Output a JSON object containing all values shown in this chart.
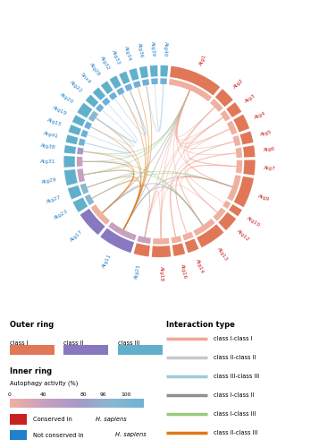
{
  "proteins": [
    {
      "name": "Atg1",
      "class": "I",
      "conserved": true,
      "partners": 14,
      "autophagy": 5
    },
    {
      "name": "Atg2",
      "class": "I",
      "conserved": true,
      "partners": 4,
      "autophagy": 5
    },
    {
      "name": "Atg3",
      "class": "I",
      "conserved": true,
      "partners": 3,
      "autophagy": 5
    },
    {
      "name": "Atg4",
      "class": "I",
      "conserved": true,
      "partners": 4,
      "autophagy": 5
    },
    {
      "name": "Atg5",
      "class": "I",
      "conserved": true,
      "partners": 3,
      "autophagy": 5
    },
    {
      "name": "Atg6",
      "class": "I",
      "conserved": true,
      "partners": 3,
      "autophagy": 5
    },
    {
      "name": "Atg7",
      "class": "I",
      "conserved": true,
      "partners": 4,
      "autophagy": 5
    },
    {
      "name": "Atg9",
      "class": "I",
      "conserved": true,
      "partners": 8,
      "autophagy": 5
    },
    {
      "name": "Atg10",
      "class": "I",
      "conserved": true,
      "partners": 2,
      "autophagy": 5
    },
    {
      "name": "Atg12",
      "class": "I",
      "conserved": true,
      "partners": 4,
      "autophagy": 5
    },
    {
      "name": "Atg13",
      "class": "I",
      "conserved": true,
      "partners": 7,
      "autophagy": 5
    },
    {
      "name": "Atg14",
      "class": "I",
      "conserved": true,
      "partners": 3,
      "autophagy": 5
    },
    {
      "name": "Atg16",
      "class": "I",
      "conserved": true,
      "partners": 3,
      "autophagy": 5
    },
    {
      "name": "Atg18",
      "class": "I",
      "conserved": true,
      "partners": 5,
      "autophagy": 5
    },
    {
      "name": "Atg21",
      "class": "I",
      "conserved": false,
      "partners": 4,
      "autophagy": 30
    },
    {
      "name": "Atg11",
      "class": "II",
      "conserved": false,
      "partners": 9,
      "autophagy": 30
    },
    {
      "name": "Atg17",
      "class": "II",
      "conserved": false,
      "partners": 7,
      "autophagy": 5
    },
    {
      "name": "Atg23",
      "class": "III",
      "conserved": false,
      "partners": 3,
      "autophagy": 80
    },
    {
      "name": "Atg27",
      "class": "III",
      "conserved": false,
      "partners": 3,
      "autophagy": 70
    },
    {
      "name": "Atg29",
      "class": "III",
      "conserved": false,
      "partners": 4,
      "autophagy": 30
    },
    {
      "name": "Atg31",
      "class": "III",
      "conserved": false,
      "partners": 3,
      "autophagy": 20
    },
    {
      "name": "Atg38",
      "class": "III",
      "conserved": false,
      "partners": 2,
      "autophagy": 50
    },
    {
      "name": "Atg41",
      "class": "III",
      "conserved": false,
      "partners": 2,
      "autophagy": 90
    },
    {
      "name": "Atg15",
      "class": "III",
      "conserved": false,
      "partners": 2,
      "autophagy": 90
    },
    {
      "name": "Atg19",
      "class": "III",
      "conserved": false,
      "partners": 2,
      "autophagy": 90
    },
    {
      "name": "Atg20",
      "class": "III",
      "conserved": false,
      "partners": 3,
      "autophagy": 80
    },
    {
      "name": "Atg22",
      "class": "III",
      "conserved": false,
      "partners": 2,
      "autophagy": 90
    },
    {
      "name": "Snx4",
      "class": "III",
      "conserved": false,
      "partners": 2,
      "autophagy": 90
    },
    {
      "name": "Atg28",
      "class": "III",
      "conserved": false,
      "partners": 2,
      "autophagy": 90
    },
    {
      "name": "Atg32",
      "class": "III",
      "conserved": false,
      "partners": 2,
      "autophagy": 90
    },
    {
      "name": "Atg33",
      "class": "III",
      "conserved": false,
      "partners": 2,
      "autophagy": 90
    },
    {
      "name": "Atg34",
      "class": "III",
      "conserved": false,
      "partners": 2,
      "autophagy": 90
    },
    {
      "name": "Atg36",
      "class": "III",
      "conserved": false,
      "partners": 2,
      "autophagy": 90
    },
    {
      "name": "Atg39",
      "class": "III",
      "conserved": false,
      "partners": 2,
      "autophagy": 90
    },
    {
      "name": "Atg40",
      "class": "III",
      "conserved": false,
      "partners": 2,
      "autophagy": 90
    }
  ],
  "interactions": [
    [
      "Atg1",
      "Atg2",
      "I",
      "I"
    ],
    [
      "Atg1",
      "Atg13",
      "I",
      "I"
    ],
    [
      "Atg1",
      "Atg17",
      "I",
      "II"
    ],
    [
      "Atg1",
      "Atg9",
      "I",
      "I"
    ],
    [
      "Atg1",
      "Atg11",
      "I",
      "II"
    ],
    [
      "Atg1",
      "Atg18",
      "I",
      "I"
    ],
    [
      "Atg1",
      "Atg29",
      "I",
      "III"
    ],
    [
      "Atg1",
      "Atg31",
      "I",
      "III"
    ],
    [
      "Atg1",
      "Atg38",
      "I",
      "III"
    ],
    [
      "Atg1",
      "Atg21",
      "I",
      "I"
    ],
    [
      "Atg1",
      "Atg3",
      "I",
      "I"
    ],
    [
      "Atg1",
      "Atg4",
      "I",
      "I"
    ],
    [
      "Atg1",
      "Atg5",
      "I",
      "I"
    ],
    [
      "Atg1",
      "Atg6",
      "I",
      "I"
    ],
    [
      "Atg2",
      "Atg18",
      "I",
      "I"
    ],
    [
      "Atg2",
      "Atg9",
      "I",
      "I"
    ],
    [
      "Atg2",
      "Atg21",
      "I",
      "I"
    ],
    [
      "Atg3",
      "Atg7",
      "I",
      "I"
    ],
    [
      "Atg3",
      "Atg16",
      "I",
      "I"
    ],
    [
      "Atg4",
      "Atg7",
      "I",
      "I"
    ],
    [
      "Atg4",
      "Atg3",
      "I",
      "I"
    ],
    [
      "Atg5",
      "Atg12",
      "I",
      "I"
    ],
    [
      "Atg5",
      "Atg16",
      "I",
      "I"
    ],
    [
      "Atg6",
      "Atg14",
      "I",
      "I"
    ],
    [
      "Atg7",
      "Atg10",
      "I",
      "I"
    ],
    [
      "Atg7",
      "Atg12",
      "I",
      "I"
    ],
    [
      "Atg9",
      "Atg18",
      "I",
      "I"
    ],
    [
      "Atg9",
      "Atg21",
      "I",
      "I"
    ],
    [
      "Atg9",
      "Atg27",
      "I",
      "III"
    ],
    [
      "Atg9",
      "Atg23",
      "I",
      "III"
    ],
    [
      "Atg9",
      "Atg11",
      "I",
      "II"
    ],
    [
      "Atg12",
      "Atg16",
      "I",
      "I"
    ],
    [
      "Atg13",
      "Atg17",
      "I",
      "II"
    ],
    [
      "Atg13",
      "Atg29",
      "I",
      "III"
    ],
    [
      "Atg13",
      "Atg31",
      "I",
      "III"
    ],
    [
      "Atg13",
      "Atg11",
      "I",
      "II"
    ],
    [
      "Atg13",
      "Atg9",
      "I",
      "I"
    ],
    [
      "Atg17",
      "Atg29",
      "II",
      "III"
    ],
    [
      "Atg17",
      "Atg31",
      "II",
      "III"
    ],
    [
      "Atg17",
      "Atg11",
      "II",
      "II"
    ],
    [
      "Atg17",
      "Atg21",
      "II",
      "I"
    ],
    [
      "Atg17",
      "Atg38",
      "II",
      "III"
    ],
    [
      "Atg11",
      "Atg19",
      "II",
      "III"
    ],
    [
      "Atg11",
      "Atg20",
      "II",
      "III"
    ],
    [
      "Atg11",
      "Atg23",
      "II",
      "III"
    ],
    [
      "Atg11",
      "Atg27",
      "II",
      "III"
    ],
    [
      "Atg11",
      "Atg34",
      "II",
      "III"
    ],
    [
      "Atg11",
      "Atg36",
      "II",
      "III"
    ],
    [
      "Atg18",
      "Atg21",
      "I",
      "I"
    ],
    [
      "Atg23",
      "Atg27",
      "III",
      "III"
    ],
    [
      "Atg29",
      "Atg31",
      "III",
      "III"
    ],
    [
      "Atg32",
      "Atg11",
      "III",
      "II"
    ],
    [
      "Atg33",
      "Atg11",
      "III",
      "II"
    ],
    [
      "Atg36",
      "Atg40",
      "III",
      "III"
    ],
    [
      "Atg39",
      "Atg40",
      "III",
      "III"
    ],
    [
      "Atg14",
      "Atg6",
      "I",
      "I"
    ],
    [
      "Atg38",
      "Atg41",
      "III",
      "III"
    ],
    [
      "Atg22",
      "Atg20",
      "III",
      "III"
    ],
    [
      "Snx4",
      "Atg20",
      "III",
      "III"
    ],
    [
      "Atg28",
      "Atg33",
      "III",
      "III"
    ],
    [
      "Atg15",
      "Atg41",
      "III",
      "III"
    ],
    [
      "Atg19",
      "Atg20",
      "III",
      "III"
    ],
    [
      "Atg32",
      "Atg33",
      "III",
      "III"
    ]
  ],
  "class_colors": {
    "I": "#E07858",
    "II": "#8878C0",
    "III": "#60B0CC"
  },
  "interaction_colors": {
    "I-I": "#F0A898",
    "II-II": "#C8C8C8",
    "III-III": "#A0C8E0",
    "I-II": "#909090",
    "I-III": "#98C880",
    "II-III": "#E07818"
  },
  "autophagy_colors": {
    "low": "#F0B0A0",
    "mid_low": "#C8A0C0",
    "mid": "#A898C8",
    "mid_high": "#88B8D0",
    "high": "#70B0D8"
  },
  "conserved_color": "#CC2020",
  "not_conserved_color": "#2080CC",
  "background_color": "#FFFFFF"
}
